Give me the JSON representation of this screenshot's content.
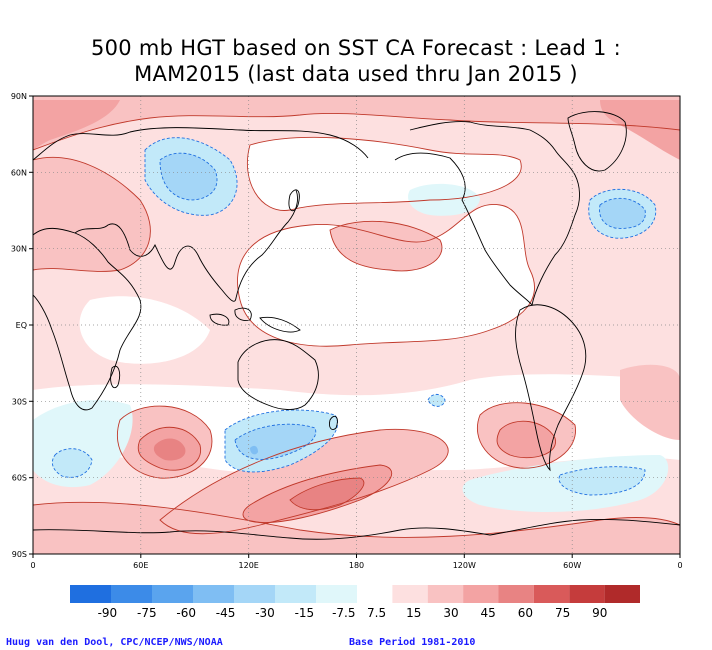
{
  "title": {
    "line1": "500 mb HGT based on SST CA Forecast : Lead 1 :",
    "line2": "MAM2015 (last data used thru Jan 2015 )"
  },
  "map": {
    "y_axis_labels": [
      "90N",
      "60N",
      "30N",
      "EQ",
      "30S",
      "60S",
      "90S"
    ],
    "x_axis_labels": [
      "0",
      "60E",
      "120E",
      "180",
      "120W",
      "60W",
      "0"
    ]
  },
  "colorbar": {
    "labels": [
      "-90",
      "-75",
      "-60",
      "-45",
      "-30",
      "-15",
      "-7.5",
      "7.5",
      "15",
      "30",
      "45",
      "60",
      "75",
      "90"
    ],
    "colors": [
      "#1f6fe0",
      "#3c8be8",
      "#5aa4ee",
      "#7fbef3",
      "#a4d6f7",
      "#c2e9f9",
      "#e0f7fa",
      "#ffffff",
      "#fde0e0",
      "#f9c2c2",
      "#f3a3a3",
      "#e88383",
      "#d95a5a",
      "#c53c3c",
      "#b02a2a"
    ]
  },
  "footer": {
    "credit": "Huug van den Dool, CPC/NCEP/NWS/NOAA",
    "base_period": "Base Period 1981-2010"
  }
}
